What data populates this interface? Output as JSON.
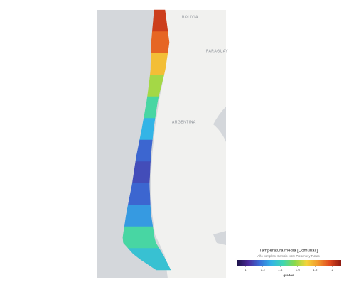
{
  "map": {
    "labels": {
      "bolivia": "BOLIVIA",
      "paraguay": "PARAGUAY",
      "argentina": "ARGENTINA"
    },
    "region_values": [
      2.0,
      1.92,
      1.75,
      1.6,
      1.45,
      1.3,
      1.15,
      1.1,
      1.15,
      1.25,
      1.45,
      1.35
    ]
  },
  "legend": {
    "title": "Temperatura media [Comunas]",
    "subtitle": "Año completo: Cambio entre Presente y Futuro",
    "axis_label": "grados",
    "range": [
      0.9,
      2.1
    ],
    "ticks": [
      1,
      1.2,
      1.4,
      1.6,
      1.8,
      2
    ],
    "colors": [
      "#1b1246",
      "#4b2a9a",
      "#3a6fd8",
      "#33b4e6",
      "#3fd6b0",
      "#8ad94a",
      "#f3d43a",
      "#f29a2e",
      "#e04a1f",
      "#8e1a12"
    ]
  }
}
